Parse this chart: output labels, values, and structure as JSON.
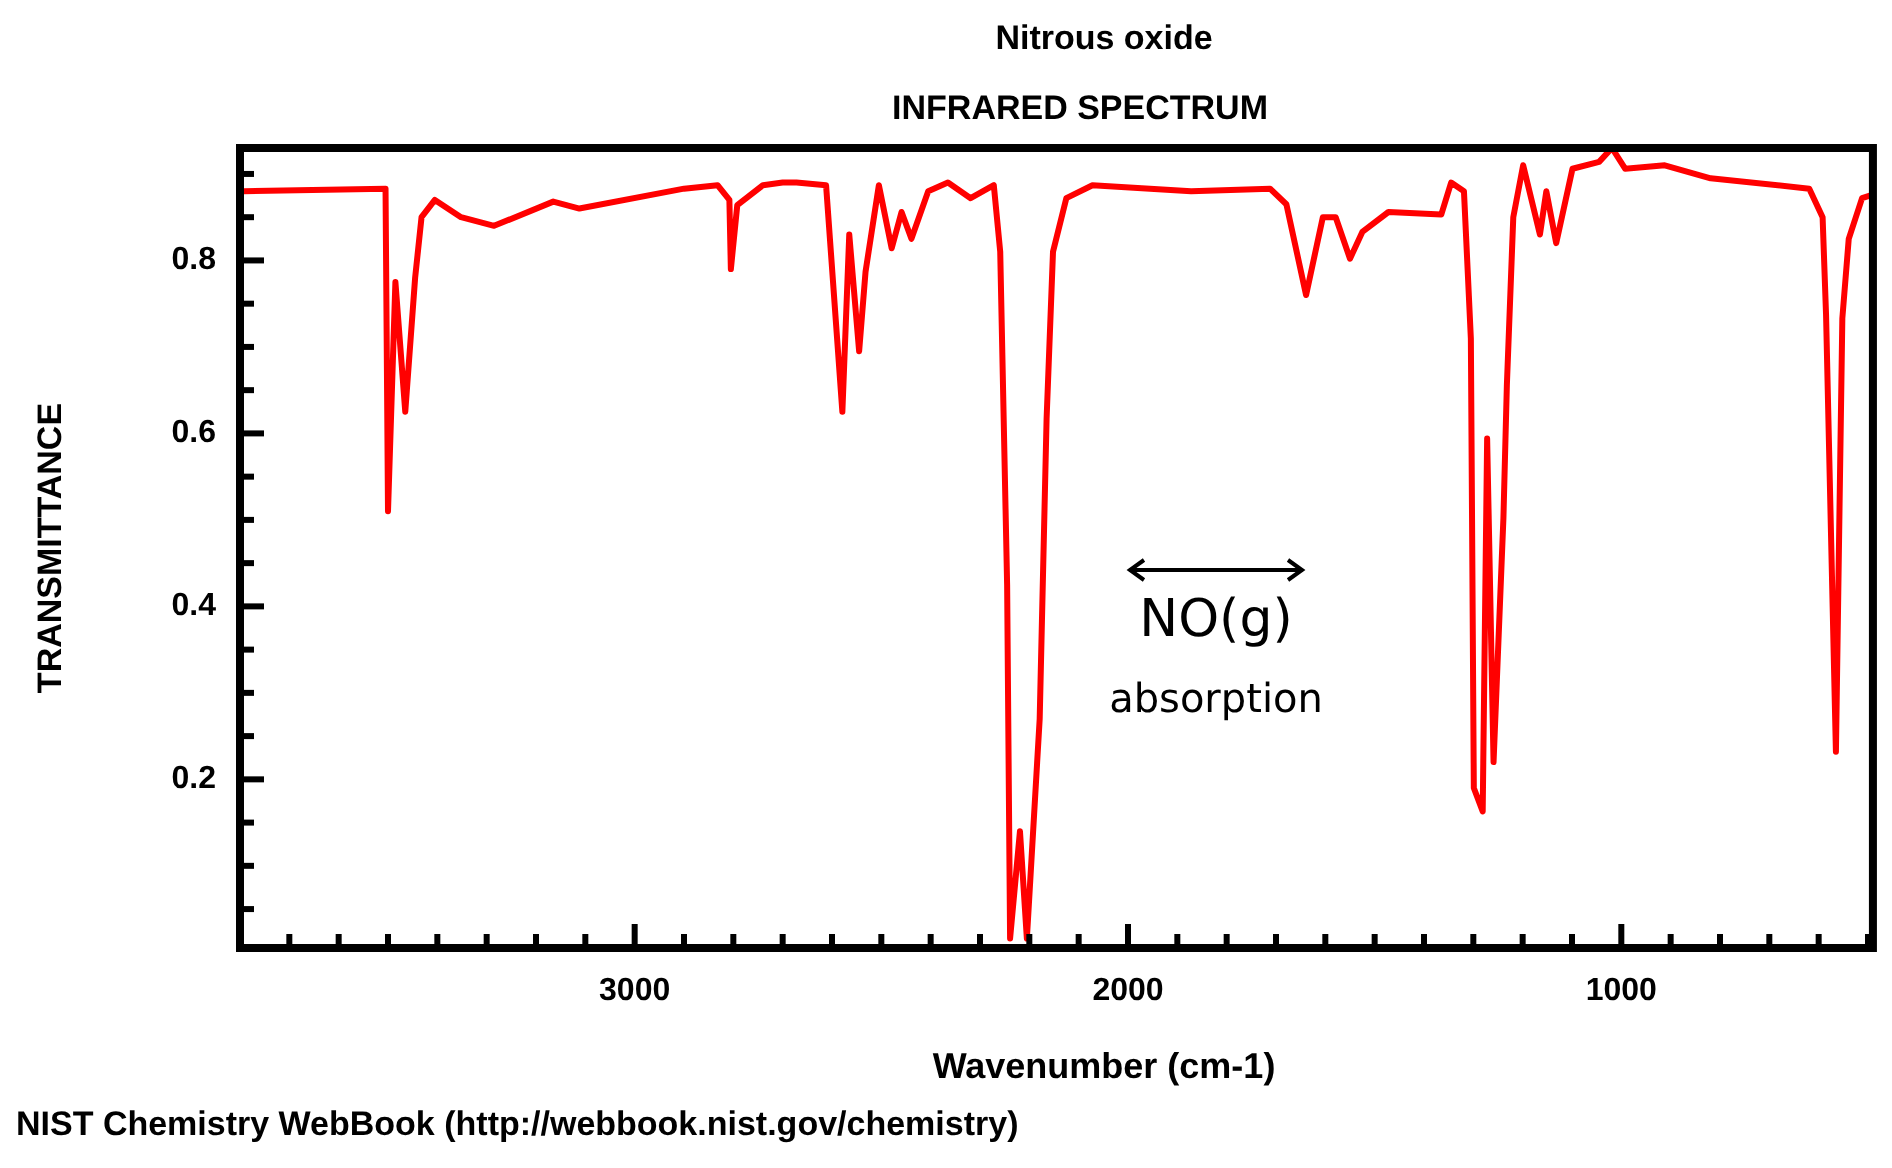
{
  "chart_data": {
    "type": "line",
    "title": "Nitrous oxide",
    "subtitle": "INFRARED SPECTRUM",
    "xlabel": "Wavenumber (cm-1)",
    "ylabel": "TRANSMITTANCE",
    "annotations": [
      "NO(g)",
      "absorption",
      "NIST Chemistry WebBook (http://webbook.nist.gov/chemistry)"
    ],
    "x": [
      3792,
      3505,
      3500,
      3485,
      3465,
      3445,
      3432,
      3405,
      3352,
      3285,
      3165,
      3112,
      2900,
      2832,
      2808,
      2805,
      2792,
      2740,
      2700,
      2672,
      2612,
      2579,
      2565,
      2545,
      2532,
      2505,
      2479,
      2459,
      2439,
      2405,
      2365,
      2319,
      2272,
      2259,
      2245,
      2239,
      2219,
      2205,
      2179,
      2165,
      2152,
      2125,
      2072,
      1872,
      1712,
      1679,
      1639,
      1605,
      1579,
      1550,
      1525,
      1472,
      1365,
      1345,
      1319,
      1305,
      1299,
      1281,
      1272,
      1259,
      1239,
      1232,
      1219,
      1199,
      1165,
      1152,
      1132,
      1099,
      1045,
      1019,
      992,
      912,
      819,
      619,
      592,
      585,
      565,
      552,
      539,
      512,
      490
    ],
    "series": [
      {
        "color": "#ff0000",
        "values": [
          0.88,
          0.883,
          0.51,
          0.775,
          0.625,
          0.78,
          0.85,
          0.87,
          0.85,
          0.84,
          0.868,
          0.86,
          0.883,
          0.887,
          0.87,
          0.79,
          0.864,
          0.887,
          0.89,
          0.89,
          0.887,
          0.625,
          0.83,
          0.695,
          0.787,
          0.887,
          0.814,
          0.856,
          0.825,
          0.88,
          0.89,
          0.872,
          0.887,
          0.81,
          0.425,
          0.016,
          0.14,
          0.016,
          0.27,
          0.617,
          0.81,
          0.872,
          0.887,
          0.88,
          0.883,
          0.865,
          0.76,
          0.85,
          0.85,
          0.802,
          0.833,
          0.856,
          0.853,
          0.89,
          0.88,
          0.71,
          0.19,
          0.163,
          0.594,
          0.22,
          0.502,
          0.656,
          0.85,
          0.91,
          0.83,
          0.88,
          0.82,
          0.906,
          0.914,
          0.93,
          0.906,
          0.91,
          0.895,
          0.883,
          0.85,
          0.737,
          0.232,
          0.733,
          0.825,
          0.872,
          0.876
        ]
      }
    ],
    "xlim": [
      3800,
      490
    ],
    "ylim": [
      0.005,
      0.93
    ],
    "xticks": [
      {
        "value": 3700,
        "label": null
      },
      {
        "value": 3600,
        "label": null
      },
      {
        "value": 3500,
        "label": null
      },
      {
        "value": 3400,
        "label": null
      },
      {
        "value": 3300,
        "label": null
      },
      {
        "value": 3200,
        "label": null
      },
      {
        "value": 3100,
        "label": null
      },
      3000,
      {
        "value": 2900,
        "label": null
      },
      {
        "value": 2800,
        "label": null
      },
      {
        "value": 2700,
        "label": null
      },
      {
        "value": 2600,
        "label": null
      },
      {
        "value": 2500,
        "label": null
      },
      {
        "value": 2400,
        "label": null
      },
      {
        "value": 2300,
        "label": null
      },
      {
        "value": 2200,
        "label": null
      },
      {
        "value": 2100,
        "label": null
      },
      2000,
      {
        "value": 1900,
        "label": null
      },
      {
        "value": 1800,
        "label": null
      },
      {
        "value": 1700,
        "label": null
      },
      {
        "value": 1600,
        "label": null
      },
      {
        "value": 1500,
        "label": null
      },
      {
        "value": 1400,
        "label": null
      },
      {
        "value": 1300,
        "label": null
      },
      {
        "value": 1200,
        "label": null
      },
      {
        "value": 1100,
        "label": null
      },
      1000,
      {
        "value": 900,
        "label": null
      },
      {
        "value": 800,
        "label": null
      },
      {
        "value": 700,
        "label": null
      },
      {
        "value": 600,
        "label": null
      },
      {
        "value": 500,
        "label": null
      }
    ],
    "yticks": [
      {
        "value": 0.05,
        "label": null
      },
      {
        "value": 0.1,
        "label": null
      },
      {
        "value": 0.15,
        "label": null
      },
      0.2,
      {
        "value": 0.25,
        "label": null
      },
      {
        "value": 0.3,
        "label": null
      },
      {
        "value": 0.35,
        "label": null
      },
      0.4,
      {
        "value": 0.45,
        "label": null
      },
      {
        "value": 0.5,
        "label": null
      },
      {
        "value": 0.55,
        "label": null
      },
      0.6,
      {
        "value": 0.65,
        "label": null
      },
      {
        "value": 0.7,
        "label": null
      },
      {
        "value": 0.75,
        "label": null
      },
      0.8,
      {
        "value": 0.85,
        "label": null
      },
      {
        "value": 0.9,
        "label": null
      }
    ],
    "grid": false,
    "legend": false,
    "marker": "none",
    "line_style": "solid"
  }
}
